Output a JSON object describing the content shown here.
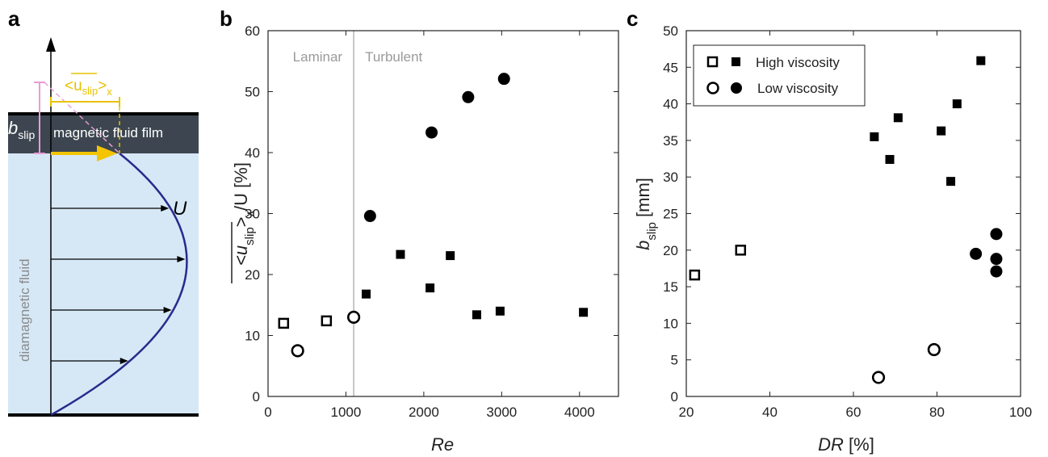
{
  "panel_labels": [
    "a",
    "b",
    "c"
  ],
  "schematic": {
    "film_label": "magnetic fluid film",
    "fluid_label": "diamagnetic fluid",
    "velocity_symbol": "U",
    "slip_symbol_main": "b",
    "slip_symbol_sub": "slip",
    "slip_velocity_main": "<u",
    "slip_velocity_sub": "slip",
    "slip_velocity_close": ">",
    "slip_velocity_x": "x",
    "colors": {
      "film": "#3d4650",
      "fluid": "#d6e8f6",
      "profile": "#2a2a8c",
      "slip_arrow": "#f5c400",
      "bslip_marker": "#e89bd6",
      "annotation": "#e8c200"
    }
  },
  "chart_data": [
    {
      "type": "scatter",
      "panel": "b",
      "xlabel": "Re",
      "ylabel_parts": {
        "main": "<u",
        "sub": "slip",
        "close": ">",
        "subx": "x",
        "rest": "/U [%]"
      },
      "xlim": [
        0,
        4500
      ],
      "ylim": [
        0,
        60
      ],
      "xticks": [
        0,
        1000,
        2000,
        3000,
        4000
      ],
      "yticks": [
        0,
        10,
        20,
        30,
        40,
        50,
        60
      ],
      "regions": {
        "left": "Laminar",
        "right": "Turbulent",
        "divider_x": 1100
      },
      "series": [
        {
          "marker": "open-square",
          "x": [
            200,
            750
          ],
          "y": [
            12.0,
            12.4
          ]
        },
        {
          "marker": "open-circle",
          "x": [
            380,
            1100
          ],
          "y": [
            7.5,
            13.0
          ]
        },
        {
          "marker": "filled-square",
          "x": [
            1260,
            1700,
            2080,
            2340,
            2680,
            2980,
            4050
          ],
          "y": [
            16.8,
            23.3,
            17.8,
            23.1,
            13.4,
            14.0,
            13.8
          ]
        },
        {
          "marker": "filled-circle",
          "x": [
            1310,
            2100,
            2570,
            3030
          ],
          "y": [
            29.6,
            43.3,
            49.1,
            52.1
          ]
        }
      ]
    },
    {
      "type": "scatter",
      "panel": "c",
      "xlabel": "DR [%]",
      "ylabel_parts": {
        "main": "b",
        "sub": "slip",
        "rest": " [mm]"
      },
      "xlim": [
        20,
        100
      ],
      "ylim": [
        0,
        50
      ],
      "xticks": [
        20,
        40,
        60,
        80,
        100
      ],
      "yticks": [
        0,
        5,
        10,
        15,
        20,
        25,
        30,
        35,
        40,
        45,
        50
      ],
      "legend": {
        "position": "top-left",
        "entries": [
          "High viscosity",
          "Low viscosity"
        ]
      },
      "series": [
        {
          "name": "High viscosity",
          "marker": "open-square",
          "x": [
            22,
            33
          ],
          "y": [
            16.6,
            20.0
          ]
        },
        {
          "name": "High viscosity",
          "marker": "filled-square",
          "x": [
            65,
            68.7,
            70.7,
            81,
            83.3,
            84.8,
            90.5
          ],
          "y": [
            35.5,
            32.4,
            38.1,
            36.3,
            29.4,
            40.0,
            45.9
          ]
        },
        {
          "name": "Low viscosity",
          "marker": "open-circle",
          "x": [
            66,
            79.3
          ],
          "y": [
            2.6,
            6.4
          ]
        },
        {
          "name": "Low viscosity",
          "marker": "filled-circle",
          "x": [
            89.3,
            94.2,
            94.2,
            94.2
          ],
          "y": [
            19.5,
            22.2,
            18.8,
            17.1
          ]
        }
      ]
    }
  ]
}
